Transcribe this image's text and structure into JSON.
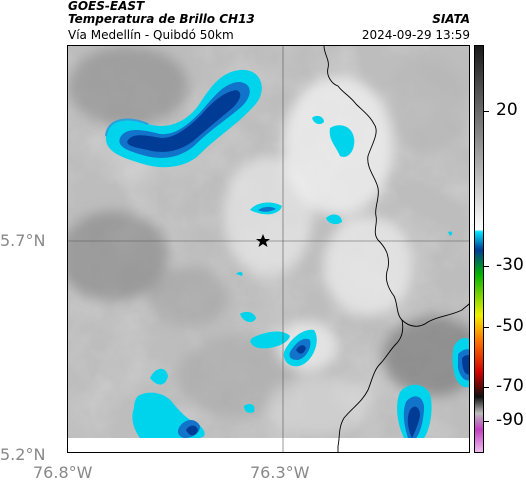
{
  "header": {
    "satellite": "GOES-EAST",
    "product": "Temperatura de Brillo CH13",
    "organization": "SIATA",
    "route": "Vía Medellín - Quibdó 50km",
    "datetime": "2024-09-29 13:59"
  },
  "map": {
    "lon_ticks": [
      "76.8°W",
      "76.3°W"
    ],
    "lat_ticks": [
      "5.7°N",
      "5.2°N"
    ],
    "marker": "star-marker"
  },
  "colorbar": {
    "labels": [
      "20",
      "-30",
      "-50",
      "-70",
      "-90"
    ],
    "colors": {
      "black": "#1a1a1a",
      "gray": "#888888",
      "white": "#ffffff",
      "cyan": "#00e5ff",
      "blue": "#003c96",
      "green": "#00b400",
      "yellow": "#f0f000",
      "orange": "#ff7800",
      "red": "#d00000",
      "magenta": "#c040c0"
    }
  }
}
